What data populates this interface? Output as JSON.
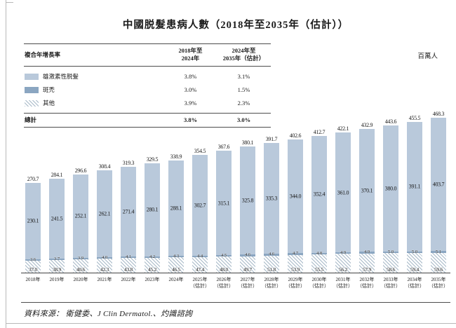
{
  "title": "中國脱髮患病人數（2018年至2035年（估計））",
  "unit_label": "百萬人",
  "source_note": "資料來源： 衛健委、J Clin Dermatol.、灼識諮詢",
  "colors": {
    "androgenetic": "#b9c9db",
    "areata": "#8ba6c1",
    "hatch_line": "#a9bac9",
    "axis": "#444444"
  },
  "legend": {
    "header": {
      "col1": "複合年增長率",
      "col2": "2018年至\n2024年",
      "col3": "2024年至\n2035年（估計）"
    },
    "rows": [
      {
        "label": "雄激素性脱髮",
        "cagr1": "3.8%",
        "cagr2": "3.1%"
      },
      {
        "label": "斑禿",
        "cagr1": "3.0%",
        "cagr2": "1.5%"
      },
      {
        "label": "其他",
        "cagr1": "3.9%",
        "cagr2": "2.3%"
      }
    ],
    "total_row": {
      "label": "總計",
      "cagr1": "3.8%",
      "cagr2": "3.0%"
    }
  },
  "chart_data": {
    "type": "bar",
    "subtype": "stacked-bar",
    "title": "中國脱髮患病人數（2018年至2035年（估計））",
    "ylabel": "百萬人",
    "ylim": [
      0,
      480
    ],
    "grid": false,
    "legend_position": "top-left",
    "stack_order": "bottom-to-top",
    "categories": [
      "2018年",
      "2019年",
      "2020年",
      "2021年",
      "2022年",
      "2023年",
      "2024年",
      "2025年\n（估計）",
      "2026年\n（估計）",
      "2027年\n（估計）",
      "2028年\n（估計）",
      "2029年\n（估計）",
      "2030年\n（估計）",
      "2031年\n（估計）",
      "2032年\n（估計）",
      "2033年\n（估計）",
      "2034年\n（估計）",
      "2035年\n（估計）"
    ],
    "series": [
      {
        "name": "其他",
        "values": [
          37.0,
          38.9,
          40.6,
          42.3,
          43.8,
          45.2,
          46.5,
          47.4,
          48.0,
          49.7,
          51.8,
          53.9,
          55.5,
          56.2,
          57.9,
          58.6,
          59.4,
          59.6
        ]
      },
      {
        "name": "斑禿",
        "values": [
          3.6,
          3.7,
          3.9,
          4.0,
          4.1,
          4.2,
          4.3,
          4.4,
          4.5,
          4.6,
          4.6,
          4.7,
          4.8,
          4.9,
          4.9,
          5.0,
          5.0,
          5.1
        ]
      },
      {
        "name": "雄激素性脱髮",
        "values": [
          230.1,
          241.5,
          252.1,
          262.1,
          271.4,
          280.1,
          288.1,
          302.7,
          315.1,
          325.8,
          335.3,
          344.0,
          352.4,
          361.0,
          370.1,
          380.0,
          391.1,
          403.7
        ]
      }
    ],
    "totals": [
      270.7,
      284.1,
      296.6,
      308.4,
      319.3,
      329.5,
      338.9,
      354.5,
      367.6,
      380.1,
      391.7,
      402.6,
      412.7,
      422.1,
      432.9,
      443.6,
      455.5,
      468.3
    ]
  }
}
